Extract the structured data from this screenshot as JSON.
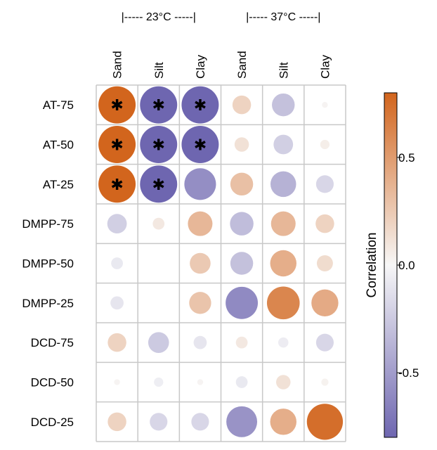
{
  "chart_data": {
    "type": "heatmap",
    "title": "",
    "groups": [
      {
        "label": "|----- 23°C -----|",
        "columns": [
          0,
          1,
          2
        ]
      },
      {
        "label": "|----- 37°C -----|",
        "columns": [
          3,
          4,
          5
        ]
      }
    ],
    "columns": [
      "Sand",
      "Silt",
      "Clay",
      "Sand",
      "Silt",
      "Clay"
    ],
    "rows": [
      "AT-75",
      "AT-50",
      "AT-25",
      "DMPP-75",
      "DMPP-50",
      "DMPP-25",
      "DCD-75",
      "DCD-50",
      "DCD-25"
    ],
    "values": [
      [
        0.92,
        -0.85,
        -0.8,
        0.2,
        -0.3,
        0.02
      ],
      [
        0.9,
        -0.85,
        -0.82,
        0.12,
        -0.22,
        0.05
      ],
      [
        0.88,
        -0.82,
        -0.58,
        0.3,
        -0.38,
        -0.18
      ],
      [
        -0.22,
        0.08,
        0.35,
        -0.32,
        0.35,
        0.2
      ],
      [
        -0.08,
        0.0,
        0.25,
        -0.3,
        0.4,
        0.15
      ],
      [
        -0.1,
        0.0,
        0.28,
        -0.6,
        0.62,
        0.42
      ],
      [
        0.2,
        -0.25,
        -0.1,
        0.08,
        -0.06,
        -0.18
      ],
      [
        0.02,
        -0.05,
        0.02,
        -0.08,
        0.12,
        0.03
      ],
      [
        0.2,
        -0.18,
        -0.18,
        -0.55,
        0.4,
        0.75
      ]
    ],
    "significant": [
      [
        true,
        true,
        true,
        false,
        false,
        false
      ],
      [
        true,
        true,
        true,
        false,
        false,
        false
      ],
      [
        true,
        true,
        false,
        false,
        false,
        false
      ],
      [
        false,
        false,
        false,
        false,
        false,
        false
      ],
      [
        false,
        false,
        false,
        false,
        false,
        false
      ],
      [
        false,
        false,
        false,
        false,
        false,
        false
      ],
      [
        false,
        false,
        false,
        false,
        false,
        false
      ],
      [
        false,
        false,
        false,
        false,
        false,
        false
      ],
      [
        false,
        false,
        false,
        false,
        false,
        false
      ]
    ],
    "significance_marker": "✱",
    "colorbar": {
      "label": "Correlation",
      "range": [
        -0.8,
        0.8
      ],
      "ticks": [
        0.5,
        0.0,
        -0.5
      ],
      "tick_labels": [
        "0.5",
        "0.0",
        "-0.5"
      ],
      "low_color": "#6e66b0",
      "mid_color": "#f7f7f7",
      "high_color": "#d2651d"
    },
    "grid": true,
    "grid_color": "#c8c8c8"
  }
}
